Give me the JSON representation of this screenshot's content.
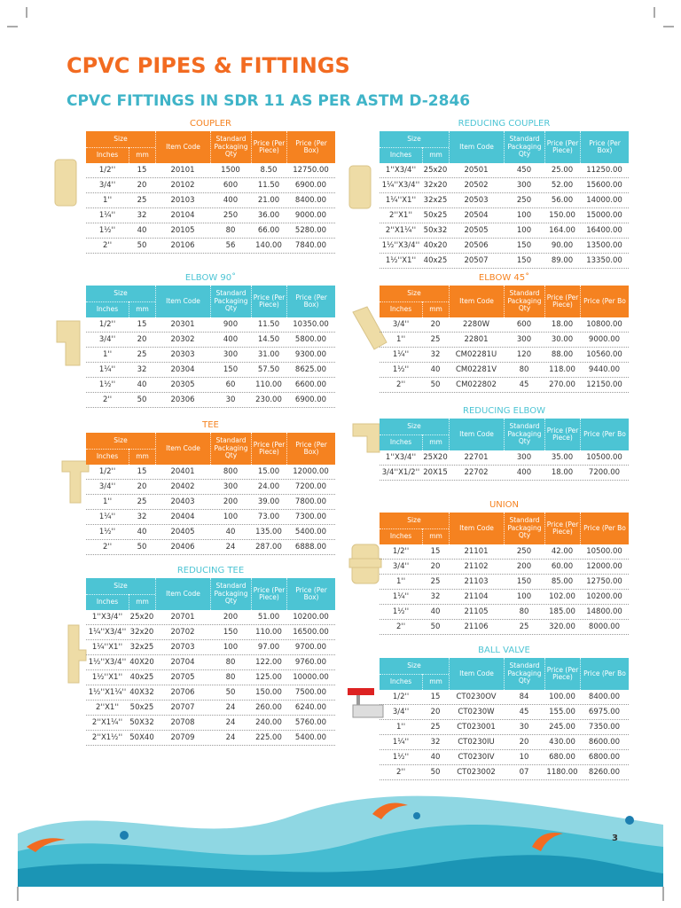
{
  "header": {
    "title": "CPVC PIPES & FITTINGS",
    "subtitle": "CPVC FITTINGS IN SDR 11 AS PER ASTM D-2846"
  },
  "page_number": "3",
  "tables": [
    {
      "title": "COUPLER",
      "columns": [
        "Size",
        "Inches",
        "mm",
        "Item Code",
        "Standard Packaging Qty",
        "Price (Per Piece)",
        "Price (Per Box)"
      ],
      "rows": [
        [
          "1/2''",
          "15",
          "20101",
          "1500",
          "8.50",
          "12750.00"
        ],
        [
          "3/4''",
          "20",
          "20102",
          "600",
          "11.50",
          "6900.00"
        ],
        [
          "1''",
          "25",
          "20103",
          "400",
          "21.00",
          "8400.00"
        ],
        [
          "1¼''",
          "32",
          "20104",
          "250",
          "36.00",
          "9000.00"
        ],
        [
          "1½''",
          "40",
          "20105",
          "80",
          "66.00",
          "5280.00"
        ],
        [
          "2''",
          "50",
          "20106",
          "56",
          "140.00",
          "7840.00"
        ]
      ]
    },
    {
      "title": "ELBOW 90˚",
      "columns": [
        "Size",
        "Inches",
        "mm",
        "Item Code",
        "Standard Packaging Qty",
        "Price (Per Piece)",
        "Price (Per Box)"
      ],
      "rows": [
        [
          "1/2''",
          "15",
          "20301",
          "900",
          "11.50",
          "10350.00"
        ],
        [
          "3/4''",
          "20",
          "20302",
          "400",
          "14.50",
          "5800.00"
        ],
        [
          "1''",
          "25",
          "20303",
          "300",
          "31.00",
          "9300.00"
        ],
        [
          "1¼''",
          "32",
          "20304",
          "150",
          "57.50",
          "8625.00"
        ],
        [
          "1½''",
          "40",
          "20305",
          "60",
          "110.00",
          "6600.00"
        ],
        [
          "2''",
          "50",
          "20306",
          "30",
          "230.00",
          "6900.00"
        ]
      ]
    },
    {
      "title": "TEE",
      "columns": [
        "Size",
        "Inches",
        "mm",
        "Item Code",
        "Standard Packaging Qty",
        "Price (Per Piece)",
        "Price (Per Box)"
      ],
      "rows": [
        [
          "1/2''",
          "15",
          "20401",
          "800",
          "15.00",
          "12000.00"
        ],
        [
          "3/4''",
          "20",
          "20402",
          "300",
          "24.00",
          "7200.00"
        ],
        [
          "1''",
          "25",
          "20403",
          "200",
          "39.00",
          "7800.00"
        ],
        [
          "1¼''",
          "32",
          "20404",
          "100",
          "73.00",
          "7300.00"
        ],
        [
          "1½''",
          "40",
          "20405",
          "40",
          "135.00",
          "5400.00"
        ],
        [
          "2''",
          "50",
          "20406",
          "24",
          "287.00",
          "6888.00"
        ]
      ]
    },
    {
      "title": "REDUCING TEE",
      "columns": [
        "Size",
        "Inches",
        "mm",
        "Item Code",
        "Standard Packaging Qty",
        "Price (Per Piece)",
        "Price (Per Box)"
      ],
      "rows": [
        [
          "1''X3/4''",
          "25x20",
          "20701",
          "200",
          "51.00",
          "10200.00"
        ],
        [
          "1¼''X3/4''",
          "32x20",
          "20702",
          "150",
          "110.00",
          "16500.00"
        ],
        [
          "1¼''X1''",
          "32x25",
          "20703",
          "100",
          "97.00",
          "9700.00"
        ],
        [
          "1½''X3/4''",
          "40X20",
          "20704",
          "80",
          "122.00",
          "9760.00"
        ],
        [
          "1½''X1''",
          "40x25",
          "20705",
          "80",
          "125.00",
          "10000.00"
        ],
        [
          "1½''X1¼''",
          "40X32",
          "20706",
          "50",
          "150.00",
          "7500.00"
        ],
        [
          "2''X1''",
          "50x25",
          "20707",
          "24",
          "260.00",
          "6240.00"
        ],
        [
          "2''X1¼''",
          "50X32",
          "20708",
          "24",
          "240.00",
          "5760.00"
        ],
        [
          "2''X1½''",
          "50X40",
          "20709",
          "24",
          "225.00",
          "5400.00"
        ]
      ]
    },
    {
      "title": "REDUCING COUPLER",
      "columns": [
        "Size",
        "Inches",
        "mm",
        "Item Code",
        "Standard Packaging Qty",
        "Price (Per Piece)",
        "Price (Per Box)"
      ],
      "rows": [
        [
          "1''X3/4''",
          "25x20",
          "20501",
          "450",
          "25.00",
          "11250.00"
        ],
        [
          "1¼''X3/4''",
          "32x20",
          "20502",
          "300",
          "52.00",
          "15600.00"
        ],
        [
          "1¼''X1''",
          "32x25",
          "20503",
          "250",
          "56.00",
          "14000.00"
        ],
        [
          "2''X1''",
          "50x25",
          "20504",
          "100",
          "150.00",
          "15000.00"
        ],
        [
          "2''X1¼''",
          "50x32",
          "20505",
          "100",
          "164.00",
          "16400.00"
        ],
        [
          "1½''X3/4''",
          "40x20",
          "20506",
          "150",
          "90.00",
          "13500.00"
        ],
        [
          "1½''X1''",
          "40x25",
          "20507",
          "150",
          "89.00",
          "13350.00"
        ]
      ]
    },
    {
      "title": "ELBOW 45˚",
      "columns": [
        "Size",
        "Inches",
        "mm",
        "Item Code",
        "Standard Packaging Qty",
        "Price (Per Piece)",
        "Price (Per Bo"
      ],
      "rows": [
        [
          "3/4''",
          "20",
          "2280W",
          "600",
          "18.00",
          "10800.00"
        ],
        [
          "1''",
          "25",
          "22801",
          "300",
          "30.00",
          "9000.00"
        ],
        [
          "1¼''",
          "32",
          "CM02281U",
          "120",
          "88.00",
          "10560.00"
        ],
        [
          "1½''",
          "40",
          "CM02281V",
          "80",
          "118.00",
          "9440.00"
        ],
        [
          "2''",
          "50",
          "CM022802",
          "45",
          "270.00",
          "12150.00"
        ]
      ]
    },
    {
      "title": "REDUCING ELBOW",
      "columns": [
        "Size",
        "Inches",
        "mm",
        "Item Code",
        "Standard Packaging Qty",
        "Price (Per Piece)",
        "Price (Per Bo"
      ],
      "rows": [
        [
          "1''X3/4''",
          "25X20",
          "22701",
          "300",
          "35.00",
          "10500.00"
        ],
        [
          "3/4''X1/2''",
          "20X15",
          "22702",
          "400",
          "18.00",
          "7200.00"
        ]
      ]
    },
    {
      "title": "UNION",
      "columns": [
        "Size",
        "Inches",
        "mm",
        "Item Code",
        "Standard Packaging Qty",
        "Price (Per Piece)",
        "Price (Per Bo"
      ],
      "rows": [
        [
          "1/2''",
          "15",
          "21101",
          "250",
          "42.00",
          "10500.00"
        ],
        [
          "3/4''",
          "20",
          "21102",
          "200",
          "60.00",
          "12000.00"
        ],
        [
          "1''",
          "25",
          "21103",
          "150",
          "85.00",
          "12750.00"
        ],
        [
          "1¼''",
          "32",
          "21104",
          "100",
          "102.00",
          "10200.00"
        ],
        [
          "1½''",
          "40",
          "21105",
          "80",
          "185.00",
          "14800.00"
        ],
        [
          "2''",
          "50",
          "21106",
          "25",
          "320.00",
          "8000.00"
        ]
      ]
    },
    {
      "title": "BALL VALVE",
      "columns": [
        "Size",
        "Inches",
        "mm",
        "Item Code",
        "Standard Packaging Qty",
        "Price (Per Piece)",
        "Price (Per Bo"
      ],
      "rows": [
        [
          "1/2''",
          "15",
          "CT0230OV",
          "84",
          "100.00",
          "8400.00"
        ],
        [
          "3/4''",
          "20",
          "CT0230W",
          "45",
          "155.00",
          "6975.00"
        ],
        [
          "1''",
          "25",
          "CT023001",
          "30",
          "245.00",
          "7350.00"
        ],
        [
          "1¼''",
          "32",
          "CT0230IU",
          "20",
          "430.00",
          "8600.00"
        ],
        [
          "1½''",
          "40",
          "CT0230IV",
          "10",
          "680.00",
          "6800.00"
        ],
        [
          "2''",
          "50",
          "CT023002",
          "07",
          "1180.00",
          "8260.00"
        ]
      ]
    }
  ]
}
